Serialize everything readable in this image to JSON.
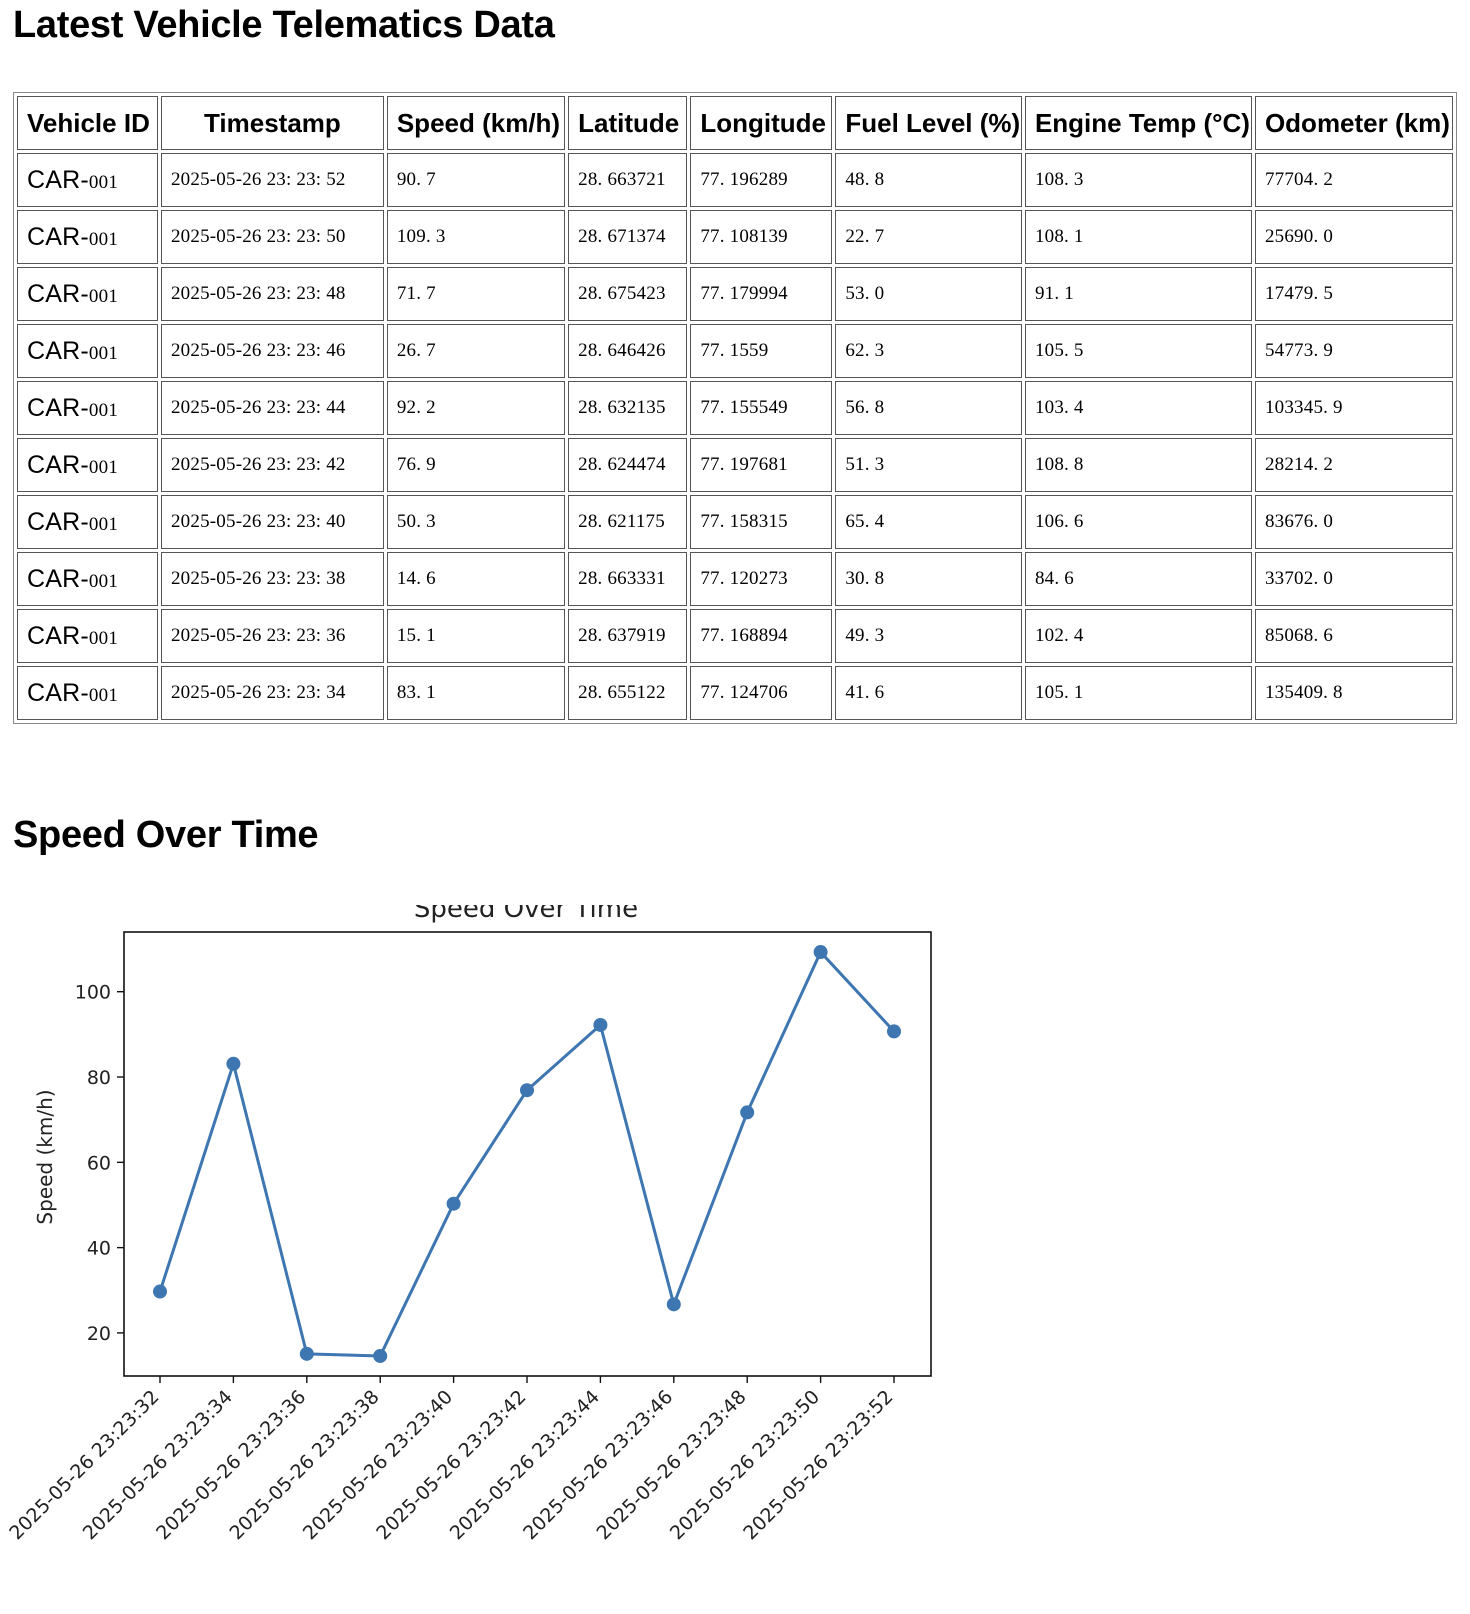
{
  "page_title": "Latest Vehicle Telematics Data",
  "table": {
    "headers": [
      "Vehicle ID",
      "Timestamp",
      "Speed (km/h)",
      "Latitude",
      "Longitude",
      "Fuel Level (%)",
      "Engine Temp (°C)",
      "Odometer (km)"
    ],
    "rows": [
      [
        "CAR-",
        "001",
        "2025-05-26 23: 23: 52",
        "90. 7",
        "28. 663721",
        "77. 196289",
        "48. 8",
        "108. 3",
        "77704. 2"
      ],
      [
        "CAR-",
        "001",
        "2025-05-26 23: 23: 50",
        "109. 3",
        "28. 671374",
        "77. 108139",
        "22. 7",
        "108. 1",
        "25690. 0"
      ],
      [
        "CAR-",
        "001",
        "2025-05-26 23: 23: 48",
        "71. 7",
        "28. 675423",
        "77. 179994",
        "53. 0",
        "91. 1",
        "17479. 5"
      ],
      [
        "CAR-",
        "001",
        "2025-05-26 23: 23: 46",
        "26. 7",
        "28. 646426",
        "77. 1559",
        "62. 3",
        "105. 5",
        "54773. 9"
      ],
      [
        "CAR-",
        "001",
        "2025-05-26 23: 23: 44",
        "92. 2",
        "28. 632135",
        "77. 155549",
        "56. 8",
        "103. 4",
        "103345. 9"
      ],
      [
        "CAR-",
        "001",
        "2025-05-26 23: 23: 42",
        "76. 9",
        "28. 624474",
        "77. 197681",
        "51. 3",
        "108. 8",
        "28214. 2"
      ],
      [
        "CAR-",
        "001",
        "2025-05-26 23: 23: 40",
        "50. 3",
        "28. 621175",
        "77. 158315",
        "65. 4",
        "106. 6",
        "83676. 0"
      ],
      [
        "CAR-",
        "001",
        "2025-05-26 23: 23: 38",
        "14. 6",
        "28. 663331",
        "77. 120273",
        "30. 8",
        "84. 6",
        "33702. 0"
      ],
      [
        "CAR-",
        "001",
        "2025-05-26 23: 23: 36",
        "15. 1",
        "28. 637919",
        "77. 168894",
        "49. 3",
        "102. 4",
        "85068. 6"
      ],
      [
        "CAR-",
        "001",
        "2025-05-26 23: 23: 34",
        "83. 1",
        "28. 655122",
        "77. 124706",
        "41. 6",
        "105. 1",
        "135409. 8"
      ]
    ]
  },
  "section_title": "Speed Over Time",
  "chart_data": {
    "type": "line",
    "title": "Speed Over Time",
    "xlabel": "",
    "ylabel": "Speed (km/h)",
    "x_ticks": [
      "2025-05-26 23:23:32",
      "2025-05-26 23:23:34",
      "2025-05-26 23:23:36",
      "2025-05-26 23:23:38",
      "2025-05-26 23:23:40",
      "2025-05-26 23:23:42",
      "2025-05-26 23:23:44",
      "2025-05-26 23:23:46",
      "2025-05-26 23:23:48",
      "2025-05-26 23:23:50",
      "2025-05-26 23:23:52"
    ],
    "x": [
      "2025-05-26 23:23:32",
      "2025-05-26 23:23:34",
      "2025-05-26 23:23:36",
      "2025-05-26 23:23:38",
      "2025-05-26 23:23:40",
      "2025-05-26 23:23:42",
      "2025-05-26 23:23:44",
      "2025-05-26 23:23:46",
      "2025-05-26 23:23:48",
      "2025-05-26 23:23:50",
      "2025-05-26 23:23:52"
    ],
    "y": [
      29.7,
      83.1,
      15.1,
      14.6,
      50.3,
      76.9,
      92.2,
      26.7,
      71.7,
      109.3,
      90.7
    ],
    "y_ticks": [
      20,
      40,
      60,
      80,
      100
    ],
    "ylim": [
      9.9,
      114
    ],
    "color": "#3d76b0",
    "grid": false,
    "legend": "none"
  }
}
